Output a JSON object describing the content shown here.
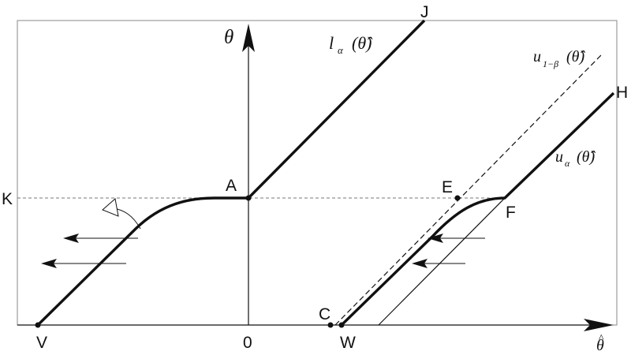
{
  "points": {
    "J": "J",
    "K": "K",
    "A": "A",
    "E": "E",
    "F": "F",
    "H": "H",
    "V": "V",
    "zero": "0",
    "C": "C",
    "W": "W"
  },
  "axes": {
    "y_symbol": "θ",
    "x_symbol": "θ",
    "x_hat": "^"
  },
  "curves": {
    "l_alpha": {
      "main": "l",
      "sub": "α",
      "arg": "(θ̂)"
    },
    "u_1beta": {
      "main": "u",
      "sub": "1−β",
      "arg": "(θ̂)"
    },
    "u_alpha": {
      "main": "u",
      "sub": "α",
      "arg": "(θ̂)"
    }
  }
}
